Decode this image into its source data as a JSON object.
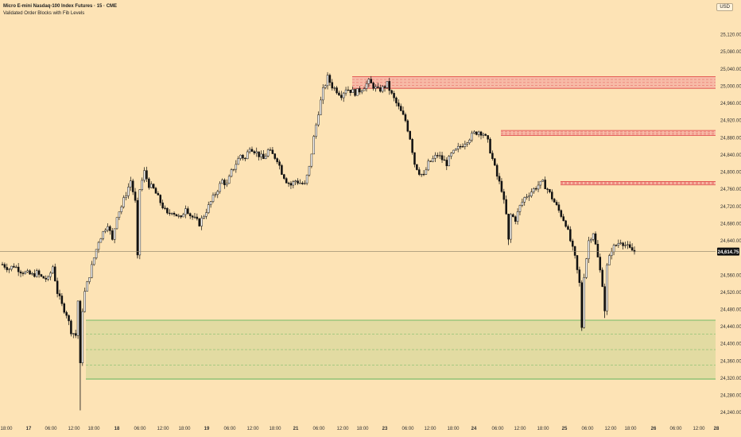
{
  "header": {
    "title": "Micro E-mini Nasdaq-100 Index Futures · 15 · CME",
    "indicator": "Validated Order Blocks with Fib Levels",
    "currency": "USD"
  },
  "chart_data": {
    "type": "candlestick",
    "ylim": [
      24220,
      25160
    ],
    "y_ticks": [
      25120,
      25080,
      25040,
      25000,
      24960,
      24920,
      24880,
      24840,
      24800,
      24760,
      24720,
      24680,
      24640,
      24600,
      24560,
      24520,
      24480,
      24440,
      24400,
      24360,
      24320,
      24280,
      24240
    ],
    "x_ticks": [
      "18:00",
      "17",
      "06:00",
      "12:00",
      "18:00",
      "18",
      "06:00",
      "12:00",
      "18:00",
      "19",
      "06:00",
      "12:00",
      "18:00",
      "21",
      "22",
      "06:00",
      "12:00",
      "18:00",
      "23",
      "06:00",
      "12:00",
      "18:00",
      "24",
      "06:00",
      "12:00",
      "18:00",
      "25",
      "06:00",
      "12:00",
      "18:00",
      "26",
      "06:00",
      "12:00",
      "28"
    ],
    "last_price": 24614.75,
    "last_price_label": "24,614.75",
    "price_path": [
      [
        0,
        24585
      ],
      [
        3,
        24575
      ],
      [
        5,
        24582
      ],
      [
        8,
        24570
      ],
      [
        10,
        24565
      ],
      [
        13,
        24560
      ],
      [
        15,
        24565
      ],
      [
        17,
        24555
      ],
      [
        20,
        24550
      ],
      [
        22,
        24580
      ],
      [
        24,
        24520
      ],
      [
        26,
        24490
      ],
      [
        28,
        24470
      ],
      [
        30,
        24430
      ],
      [
        32,
        24420
      ],
      [
        33,
        24500
      ],
      [
        34,
        24350
      ],
      [
        35,
        24480
      ],
      [
        36,
        24520
      ],
      [
        38,
        24560
      ],
      [
        40,
        24600
      ],
      [
        42,
        24640
      ],
      [
        44,
        24660
      ],
      [
        46,
        24680
      ],
      [
        48,
        24640
      ],
      [
        50,
        24700
      ],
      [
        52,
        24720
      ],
      [
        54,
        24750
      ],
      [
        56,
        24780
      ],
      [
        58,
        24730
      ],
      [
        59,
        24600
      ],
      [
        60,
        24760
      ],
      [
        62,
        24800
      ],
      [
        64,
        24770
      ],
      [
        66,
        24760
      ],
      [
        68,
        24740
      ],
      [
        70,
        24720
      ],
      [
        72,
        24700
      ],
      [
        74,
        24710
      ],
      [
        76,
        24700
      ],
      [
        78,
        24690
      ],
      [
        80,
        24720
      ],
      [
        82,
        24700
      ],
      [
        84,
        24690
      ],
      [
        86,
        24680
      ],
      [
        88,
        24700
      ],
      [
        90,
        24720
      ],
      [
        92,
        24740
      ],
      [
        94,
        24760
      ],
      [
        96,
        24780
      ],
      [
        98,
        24770
      ],
      [
        100,
        24800
      ],
      [
        102,
        24820
      ],
      [
        104,
        24840
      ],
      [
        106,
        24830
      ],
      [
        108,
        24860
      ],
      [
        110,
        24850
      ],
      [
        112,
        24840
      ],
      [
        114,
        24830
      ],
      [
        116,
        24850
      ],
      [
        118,
        24840
      ],
      [
        120,
        24830
      ],
      [
        122,
        24800
      ],
      [
        124,
        24780
      ],
      [
        126,
        24770
      ],
      [
        128,
        24780
      ],
      [
        130,
        24775
      ],
      [
        132,
        24770
      ],
      [
        134,
        24810
      ],
      [
        136,
        24880
      ],
      [
        138,
        24940
      ],
      [
        140,
        24990
      ],
      [
        142,
        25020
      ],
      [
        144,
        25000
      ],
      [
        146,
        24990
      ],
      [
        148,
        24980
      ],
      [
        150,
        24995
      ],
      [
        152,
        24990
      ],
      [
        154,
        24985
      ],
      [
        156,
        24990
      ],
      [
        158,
        25000
      ],
      [
        160,
        25010
      ],
      [
        162,
        25000
      ],
      [
        164,
        24990
      ],
      [
        166,
        24995
      ],
      [
        168,
        25005
      ],
      [
        170,
        24980
      ],
      [
        172,
        24960
      ],
      [
        174,
        24940
      ],
      [
        176,
        24920
      ],
      [
        178,
        24880
      ],
      [
        180,
        24820
      ],
      [
        182,
        24800
      ],
      [
        184,
        24790
      ],
      [
        186,
        24820
      ],
      [
        188,
        24830
      ],
      [
        190,
        24840
      ],
      [
        192,
        24830
      ],
      [
        194,
        24820
      ],
      [
        196,
        24840
      ],
      [
        198,
        24850
      ],
      [
        200,
        24860
      ],
      [
        202,
        24870
      ],
      [
        204,
        24880
      ],
      [
        206,
        24890
      ],
      [
        208,
        24895
      ],
      [
        210,
        24890
      ],
      [
        212,
        24870
      ],
      [
        214,
        24830
      ],
      [
        216,
        24790
      ],
      [
        218,
        24760
      ],
      [
        220,
        24700
      ],
      [
        221,
        24640
      ],
      [
        222,
        24700
      ],
      [
        224,
        24690
      ],
      [
        226,
        24720
      ],
      [
        228,
        24740
      ],
      [
        230,
        24750
      ],
      [
        232,
        24760
      ],
      [
        234,
        24770
      ],
      [
        236,
        24775
      ],
      [
        238,
        24760
      ],
      [
        240,
        24740
      ],
      [
        242,
        24720
      ],
      [
        244,
        24700
      ],
      [
        246,
        24680
      ],
      [
        248,
        24640
      ],
      [
        250,
        24600
      ],
      [
        252,
        24540
      ],
      [
        253,
        24440
      ],
      [
        254,
        24560
      ],
      [
        256,
        24640
      ],
      [
        258,
        24660
      ],
      [
        260,
        24600
      ],
      [
        262,
        24540
      ],
      [
        263,
        24480
      ],
      [
        264,
        24580
      ],
      [
        266,
        24620
      ],
      [
        268,
        24630
      ],
      [
        270,
        24640
      ],
      [
        272,
        24630
      ],
      [
        274,
        24620
      ],
      [
        276,
        24615
      ]
    ],
    "zones": [
      {
        "kind": "bearish-order-block",
        "top": 25022,
        "bottom": 24995
      },
      {
        "kind": "bearish-order-block",
        "top": 24897,
        "bottom": 24885
      },
      {
        "kind": "bearish-order-block",
        "top": 24778,
        "bottom": 24770
      },
      {
        "kind": "bullish-order-block",
        "top": 24455,
        "bottom": 24318
      }
    ],
    "colors": {
      "background": "#fde3b5",
      "candle": "#111111",
      "bearish_zone": "#f29a9a",
      "bearish_zone_line": "#e04848",
      "bullish_zone": "#d6d79a",
      "bullish_zone_line": "#4caf50",
      "price_line": "#8a7e66",
      "price_tag": "#111111"
    }
  }
}
